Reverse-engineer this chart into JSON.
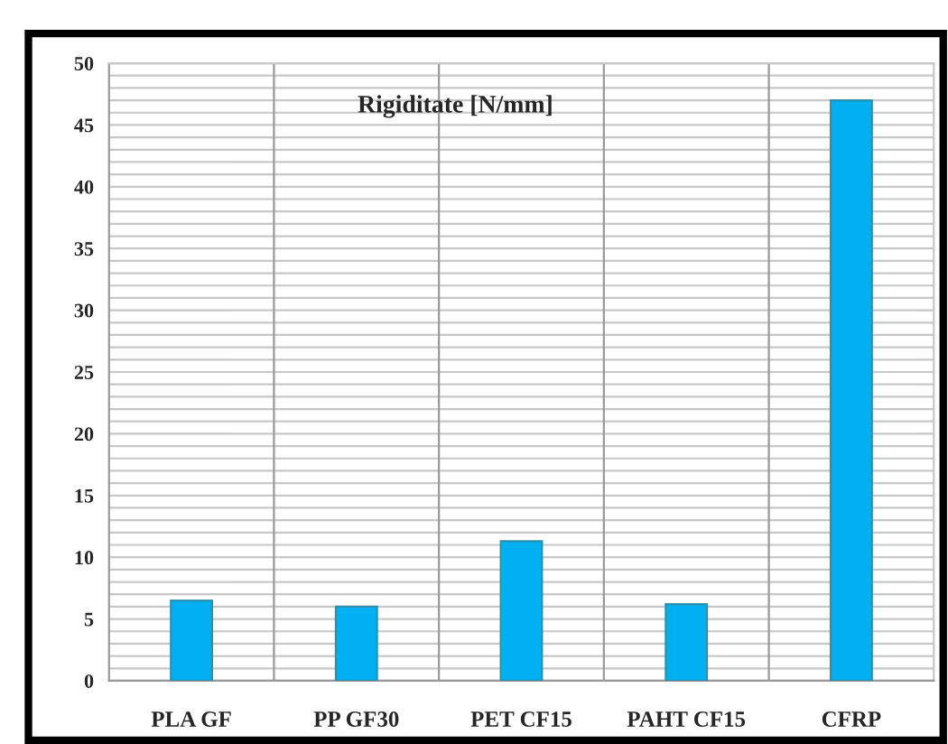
{
  "chart_data": {
    "type": "bar",
    "title": "Rigiditate [N/mm]",
    "categories": [
      "PLA GF",
      "PP GF30",
      "PET CF15",
      "PAHT CF15",
      "CFRP"
    ],
    "values": [
      6.5,
      6.0,
      11.3,
      6.2,
      47.0
    ],
    "color": "#00b0f0",
    "ylim": [
      0,
      50
    ],
    "yticks": [
      0,
      5,
      10,
      15,
      20,
      25,
      30,
      35,
      40,
      45,
      50
    ],
    "grid": true
  }
}
